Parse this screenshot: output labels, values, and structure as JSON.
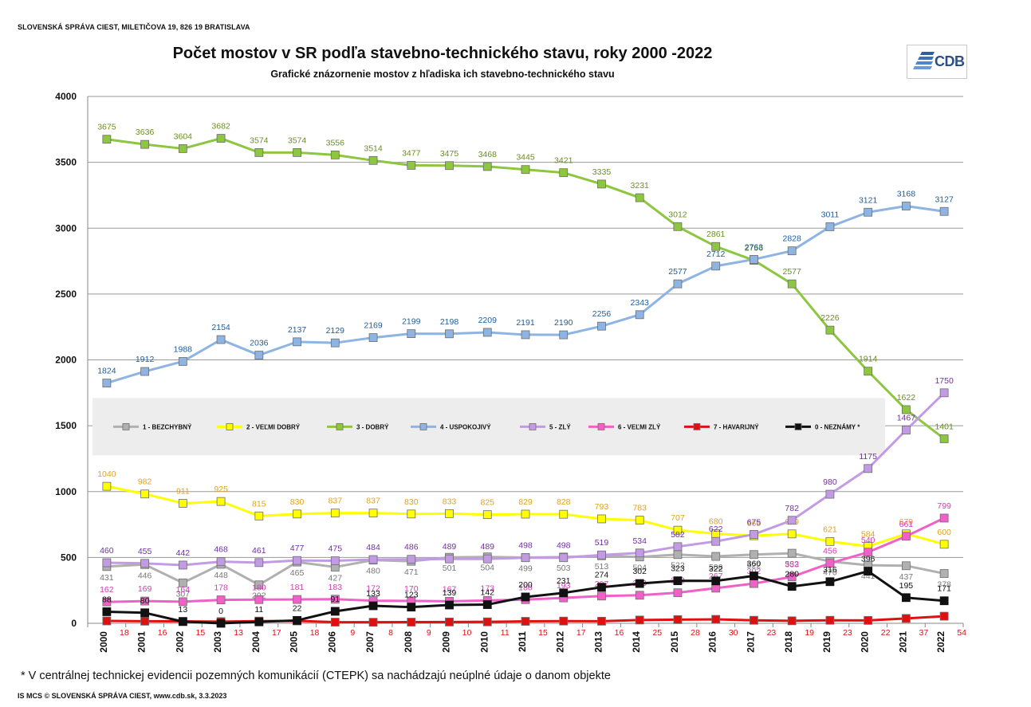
{
  "header": {
    "organization": "SLOVENSKÁ SPRÁVA CIEST, MILETIČOVA 19, 826 19  BRATISLAVA",
    "logo_text": "CDB",
    "logo_icon": "cdb-stripes-icon"
  },
  "footnote": "*  V centrálnej  technickej evidencii pozemných komunikácií (CTEPK) sa nachádzajú neúplné údaje o danom objekte",
  "footer": "IS MCS © SLOVENSKÁ SPRÁVA CIEST, www.cdb.sk, 3.3.2023",
  "chart_data": {
    "type": "line",
    "title": "Počet mostov v SR podľa stavebno-technického stavu, roky 2000 -2022",
    "subtitle": "Grafické znázornenie mostov z hľadiska ich stavebno-technického stavu",
    "xlabel": "",
    "ylabel": "",
    "ylim": [
      0,
      4000
    ],
    "yticks": [
      0,
      500,
      1000,
      1500,
      2000,
      2500,
      3000,
      3500,
      4000
    ],
    "grid": true,
    "legend_placement": "middle",
    "categories": [
      "2000",
      "2001",
      "2002",
      "2003",
      "2004",
      "2005",
      "2006",
      "2007",
      "2008",
      "2009",
      "2010",
      "2011",
      "2012",
      "2013",
      "2014",
      "2015",
      "2016",
      "2017",
      "2018",
      "2019",
      "2020",
      "2021",
      "2022"
    ],
    "series": [
      {
        "name": "1 - BEZCHYBNÝ",
        "color": "#b0b0b0",
        "label_color": "#777777",
        "label_pos": "below",
        "values": [
          431,
          446,
          307,
          448,
          292,
          465,
          427,
          480,
          471,
          501,
          504,
          499,
          503,
          513,
          504,
          522,
          508,
          522,
          532,
          470,
          441,
          437,
          378
        ]
      },
      {
        "name": "2 - VEĽMI DOBRÝ",
        "color": "#ffff00",
        "label_color": "#e2a21c",
        "label_pos": "above",
        "values": [
          1040,
          982,
          911,
          925,
          815,
          830,
          837,
          837,
          830,
          833,
          825,
          829,
          828,
          793,
          783,
          707,
          680,
          665,
          679,
          621,
          584,
          679,
          600
        ]
      },
      {
        "name": "3 - DOBRÝ",
        "color": "#8dc63f",
        "label_color": "#6b8e23",
        "label_pos": "above",
        "values": [
          3675,
          3636,
          3604,
          3682,
          3574,
          3574,
          3556,
          3514,
          3477,
          3475,
          3468,
          3445,
          3421,
          3335,
          3231,
          3012,
          2861,
          2756,
          2577,
          2226,
          1914,
          1622,
          1401
        ]
      },
      {
        "name": "4 - USPOKOJIVÝ",
        "color": "#8eb4e3",
        "label_color": "#1f5c99",
        "label_pos": "above",
        "values": [
          1824,
          1912,
          1988,
          2154,
          2036,
          2137,
          2129,
          2169,
          2199,
          2198,
          2209,
          2191,
          2190,
          2256,
          2343,
          2577,
          2712,
          2763,
          2828,
          3011,
          3121,
          3168,
          3127
        ]
      },
      {
        "name": "5 - ZLÝ",
        "color": "#c39be4",
        "label_color": "#7030a0",
        "label_pos": "above",
        "values": [
          460,
          455,
          442,
          468,
          461,
          477,
          475,
          484,
          486,
          489,
          489,
          498,
          498,
          519,
          534,
          582,
          622,
          675,
          782,
          980,
          1175,
          1467,
          1750
        ]
      },
      {
        "name": "6 - VEĽMI ZLÝ",
        "color": "#f060c8",
        "label_color": "#d63ab6",
        "label_pos": "above",
        "values": [
          162,
          169,
          164,
          178,
          180,
          181,
          183,
          172,
          170,
          167,
          173,
          180,
          193,
          207,
          213,
          232,
          267,
          302,
          353,
          456,
          540,
          661,
          799
        ]
      },
      {
        "name": "7 - HAVARIJNÝ",
        "color": "#e01010",
        "label_color": "#e01010",
        "label_pos": "below",
        "values": [
          18,
          16,
          15,
          13,
          17,
          18,
          9,
          8,
          9,
          10,
          11,
          15,
          17,
          16,
          25,
          28,
          30,
          23,
          19,
          23,
          22,
          37,
          54
        ]
      },
      {
        "name": "0 - NEZNÁMY  *",
        "color": "#111111",
        "label_color": "#111111",
        "label_pos": "above",
        "values": [
          88,
          80,
          13,
          0,
          11,
          22,
          91,
          133,
          123,
          139,
          142,
          200,
          231,
          274,
          302,
          323,
          322,
          360,
          280,
          316,
          396,
          195,
          171
        ]
      }
    ]
  }
}
